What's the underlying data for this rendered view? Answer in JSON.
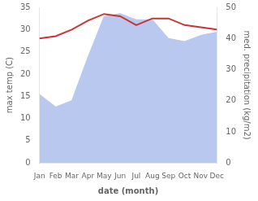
{
  "chart_data": {
    "type": "line",
    "xlabel": "date (month)",
    "ylabel": "max temp (C)",
    "y2label": "med. precipitation (kg/m2)",
    "categories": [
      "Jan",
      "Feb",
      "Mar",
      "Apr",
      "May",
      "Jun",
      "Jul",
      "Aug",
      "Sep",
      "Oct",
      "Nov",
      "Dec"
    ],
    "series": [
      {
        "type": "area",
        "axis": "y2",
        "color": "#b8c8ee",
        "values": [
          22.0,
          18.0,
          20.0,
          34.0,
          47.0,
          48.0,
          46.0,
          46.0,
          40.0,
          39.0,
          41.0,
          42.0
        ]
      },
      {
        "type": "line",
        "color": "#cc3333",
        "values": [
          28.0,
          28.5,
          30.0,
          32.0,
          33.5,
          33.0,
          31.0,
          32.5,
          32.5,
          31.0,
          30.5,
          30.0
        ]
      }
    ],
    "ylim": [
      0,
      35
    ],
    "yticks": [
      0,
      5,
      10,
      15,
      20,
      25,
      30,
      35
    ],
    "y2lim": [
      0,
      50
    ],
    "y2ticks": [
      0,
      10,
      20,
      30,
      40,
      50
    ],
    "grid": false
  }
}
